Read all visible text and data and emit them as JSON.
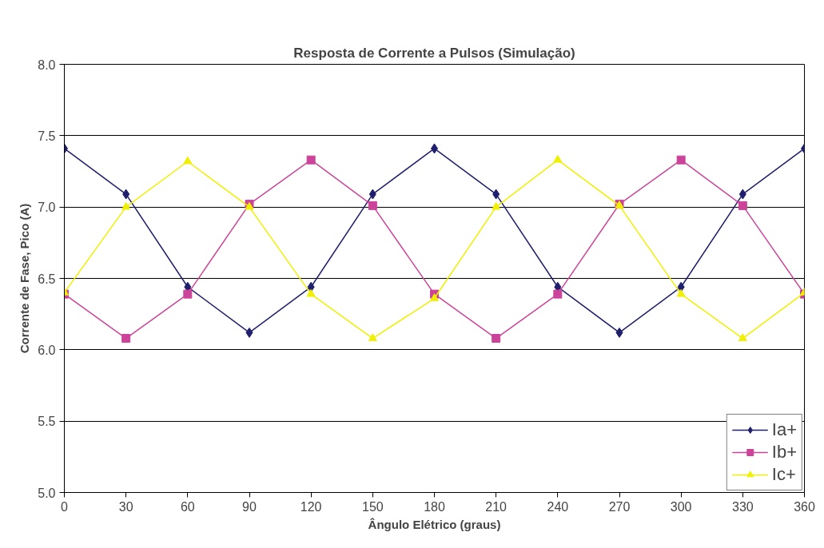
{
  "chart_data": {
    "type": "line",
    "title": "Resposta de Corrente a Pulsos (Simulação)",
    "xlabel": "Ângulo Elétrico (graus)",
    "ylabel": "Corrente de Fase, Pico (A)",
    "x": [
      0,
      30,
      60,
      90,
      120,
      150,
      180,
      210,
      240,
      270,
      300,
      330,
      360
    ],
    "series": [
      {
        "name": "Ia+",
        "color": "#1f1f6e",
        "marker": "diamond",
        "values": [
          7.41,
          7.09,
          6.44,
          6.12,
          6.44,
          7.09,
          7.41,
          7.09,
          6.44,
          6.12,
          6.44,
          7.09,
          7.41
        ]
      },
      {
        "name": "Ib+",
        "color": "#cc4499",
        "marker": "square",
        "values": [
          6.39,
          6.08,
          6.39,
          7.02,
          7.33,
          7.01,
          6.39,
          6.08,
          6.39,
          7.02,
          7.33,
          7.01,
          6.39
        ]
      },
      {
        "name": "Ic+",
        "color": "#f0f000",
        "marker": "triangle",
        "values": [
          6.4,
          7.0,
          7.32,
          7.0,
          6.39,
          6.08,
          6.36,
          7.0,
          7.33,
          7.01,
          6.39,
          6.08,
          6.4
        ]
      }
    ],
    "xlim": [
      0,
      360
    ],
    "xticks": [
      0,
      30,
      60,
      90,
      120,
      150,
      180,
      210,
      240,
      270,
      300,
      330,
      360
    ],
    "ylim": [
      5.0,
      8.0
    ],
    "yticks": [
      {
        "value": 5,
        "label": "5.0"
      },
      5.5,
      {
        "value": 6,
        "label": "6.0"
      },
      6.5,
      {
        "value": 7,
        "label": "7.0"
      },
      7.5,
      {
        "value": 8,
        "label": "8.0"
      }
    ],
    "grid": "y",
    "legend": "bottom right",
    "line_style": "solid"
  }
}
